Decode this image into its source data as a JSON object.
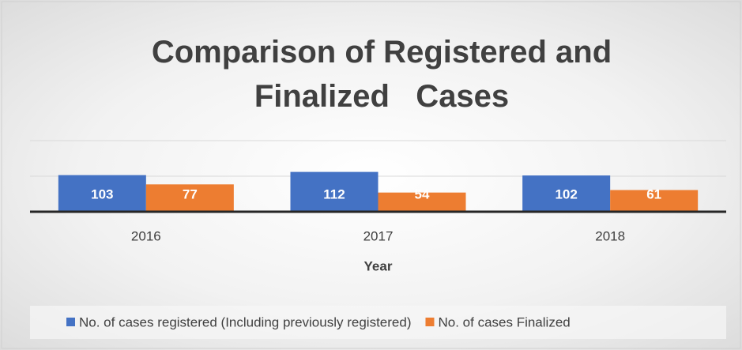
{
  "chart_data": {
    "type": "bar",
    "title": "Comparison of Registered and Finalized   Cases",
    "xlabel": "Year",
    "categories": [
      "2016",
      "2017",
      "2018"
    ],
    "series": [
      {
        "name": "No. of cases registered (Including previously registered)",
        "color": "#4472c4",
        "values": [
          103,
          112,
          102
        ]
      },
      {
        "name": "No. of cases Finalized",
        "color": "#ed7d31",
        "values": [
          77,
          54,
          61
        ]
      }
    ],
    "ylim": [
      0,
      200
    ],
    "yticks": [
      0,
      100,
      200
    ],
    "grid": true,
    "show_ytick_labels": false,
    "legend": "bottom"
  }
}
